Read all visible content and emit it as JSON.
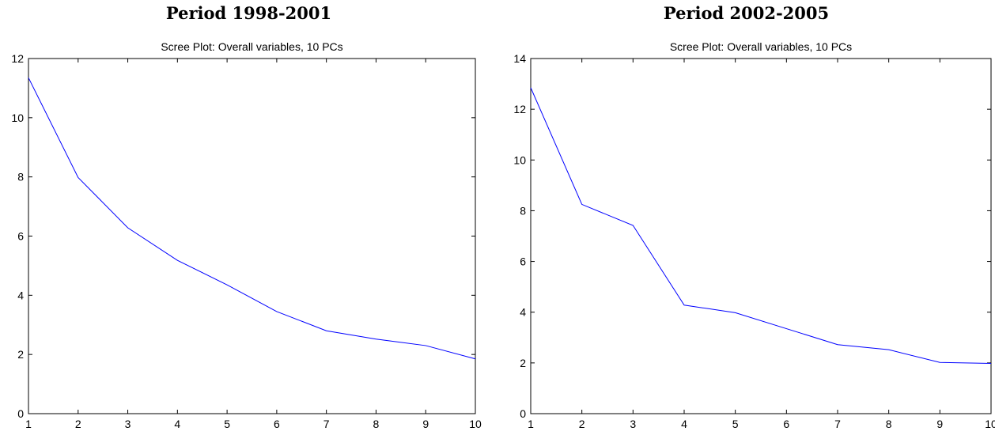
{
  "panels": [
    {
      "period_title": "Period 1998-2001"
    },
    {
      "period_title": "Period 2002-2005"
    }
  ],
  "chart_data": [
    {
      "type": "line",
      "title": "Scree Plot: Overall variables, 10 PCs",
      "xlabel": "",
      "ylabel": "",
      "x": [
        1,
        2,
        3,
        4,
        5,
        6,
        7,
        8,
        9,
        10
      ],
      "xlim": [
        1,
        10
      ],
      "ylim": [
        0,
        12
      ],
      "xticks": [
        1,
        2,
        3,
        4,
        5,
        6,
        7,
        8,
        9,
        10
      ],
      "yticks": [
        0,
        2,
        4,
        6,
        8,
        10,
        12
      ],
      "grid": false,
      "series": [
        {
          "values": [
            11.35,
            7.98,
            6.28,
            5.18,
            4.35,
            3.45,
            2.8,
            2.52,
            2.3,
            1.85
          ],
          "color": "#0000ff"
        }
      ]
    },
    {
      "type": "line",
      "title": "Scree Plot: Overall variables, 10 PCs",
      "xlabel": "",
      "ylabel": "",
      "x": [
        1,
        2,
        3,
        4,
        5,
        6,
        7,
        8,
        9,
        10
      ],
      "xlim": [
        1,
        10
      ],
      "ylim": [
        0,
        14
      ],
      "xticks": [
        1,
        2,
        3,
        4,
        5,
        6,
        7,
        8,
        9,
        10
      ],
      "yticks": [
        0,
        2,
        4,
        6,
        8,
        10,
        12,
        14
      ],
      "grid": false,
      "series": [
        {
          "values": [
            12.85,
            8.25,
            7.42,
            4.28,
            3.98,
            3.35,
            2.72,
            2.52,
            2.02,
            1.98
          ],
          "color": "#0000ff"
        }
      ]
    }
  ]
}
